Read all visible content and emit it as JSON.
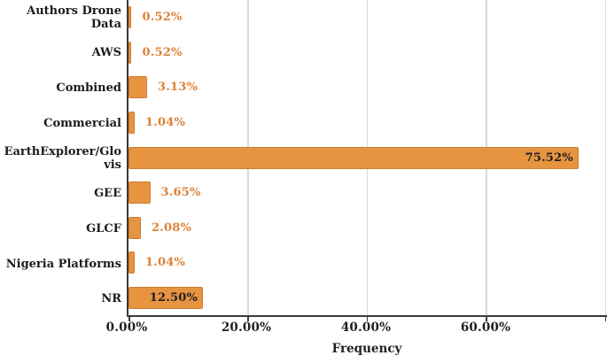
{
  "chart_data": {
    "type": "bar",
    "orientation": "horizontal",
    "title": "",
    "xlabel": "Frequency",
    "categories": [
      "Authors Drone Data",
      "AWS",
      "Combined",
      "Commercial",
      "EarthExplorer/Glovis",
      "GEE",
      "GLCF",
      "Nigeria Platforms",
      "NR"
    ],
    "values": [
      0.52,
      0.52,
      3.13,
      1.04,
      75.52,
      3.65,
      2.08,
      1.04,
      12.5
    ],
    "value_labels": [
      "0.52%",
      "0.52%",
      "3.13%",
      "1.04%",
      "75.52%",
      "3.65%",
      "2.08%",
      "1.04%",
      "12.50%"
    ],
    "label_position": [
      "outside",
      "outside",
      "outside",
      "outside",
      "inside",
      "outside",
      "outside",
      "outside",
      "inside"
    ],
    "x_ticks": [
      {
        "value": 0,
        "label": "0.00%"
      },
      {
        "value": 20,
        "label": "20.00%"
      },
      {
        "value": 40,
        "label": "40.00%"
      },
      {
        "value": 60,
        "label": "60.00%"
      },
      {
        "value": 80,
        "label": ""
      }
    ],
    "xlim": [
      0,
      80.3
    ],
    "grid": "vertical",
    "legend": "none",
    "colors": {
      "bar_fill": "#E79441",
      "bar_border": "#CE7D30",
      "value_label": "#DC8134",
      "inside_value_label": "#1F1F1F",
      "category_label": "#1C1C1C",
      "axis_line": "#3A3A3A",
      "gridline": "#D9D9D9"
    }
  }
}
